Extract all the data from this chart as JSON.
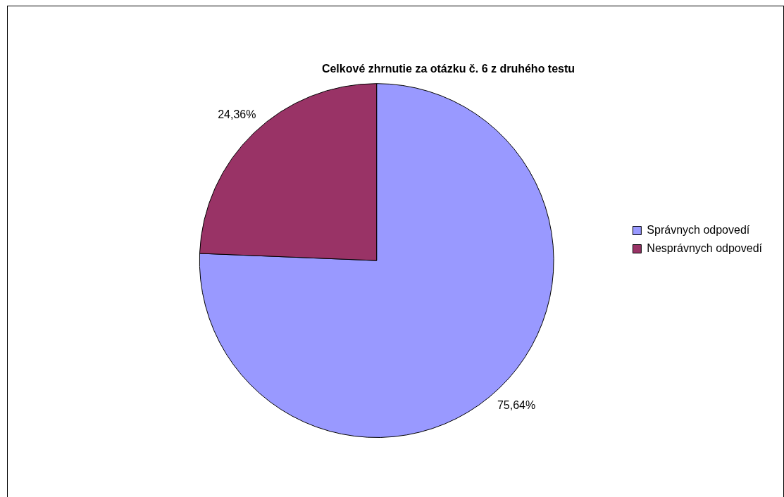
{
  "chart_data": {
    "type": "pie",
    "title": "Celkové zhrnutie za otázku č. 6 z druhého testu",
    "categories": [
      "Správnych odpovedí",
      "Nesprávnych odpovedí"
    ],
    "values": [
      75.64,
      24.36
    ],
    "colors": [
      "#9999ff",
      "#993366"
    ],
    "value_labels": [
      "75,64%",
      "24,36%"
    ],
    "legend": "right"
  }
}
